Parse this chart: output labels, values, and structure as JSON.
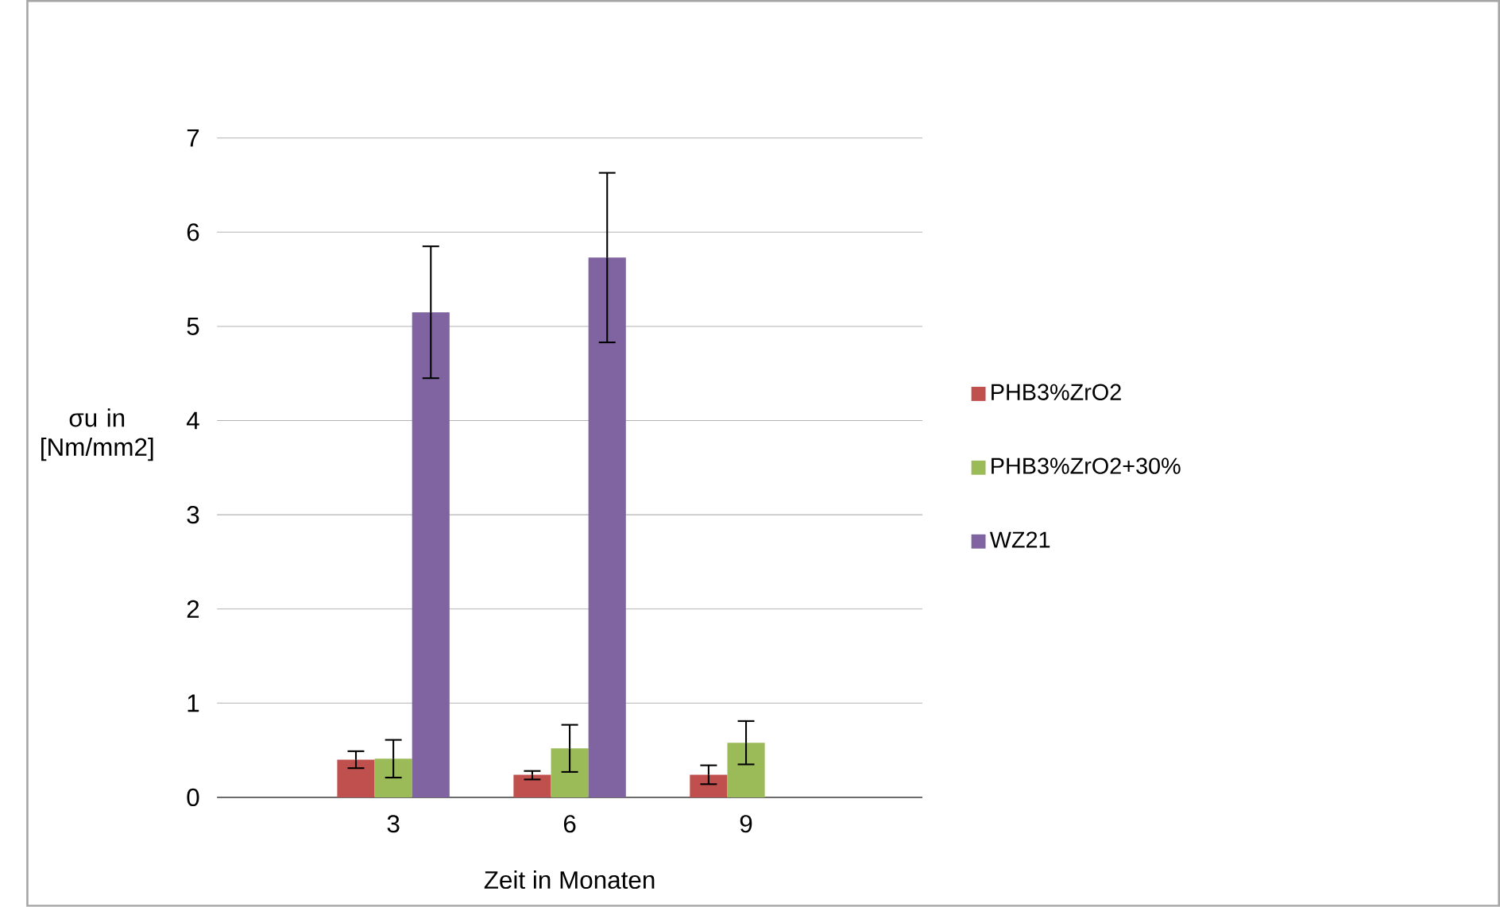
{
  "chart_data": {
    "type": "bar",
    "xlabel": "Zeit in Monaten",
    "ylabel": "σu in [Nm/mm2]",
    "categories": [
      "3",
      "6",
      "9"
    ],
    "series": [
      {
        "name": "PHB3%ZrO2",
        "color": "#c0504d",
        "values": [
          0.4,
          0.24,
          0.24
        ],
        "errors": [
          [
            0.31,
            0.49
          ],
          [
            0.19,
            0.28
          ],
          [
            0.14,
            0.34
          ]
        ]
      },
      {
        "name": "PHB3%ZrO2+30%",
        "color": "#9bbb59",
        "values": [
          0.41,
          0.52,
          0.58
        ],
        "errors": [
          [
            0.21,
            0.61
          ],
          [
            0.27,
            0.77
          ],
          [
            0.35,
            0.81
          ]
        ]
      },
      {
        "name": "WZ21",
        "color": "#8064a2",
        "values": [
          5.15,
          5.73,
          null
        ],
        "errors": [
          [
            4.45,
            5.85
          ],
          [
            4.83,
            6.63
          ],
          null
        ]
      }
    ],
    "ylim": [
      0,
      7
    ],
    "yticks": [
      0,
      1,
      2,
      3,
      4,
      5,
      6,
      7
    ],
    "grid": "y",
    "legend": "right"
  }
}
